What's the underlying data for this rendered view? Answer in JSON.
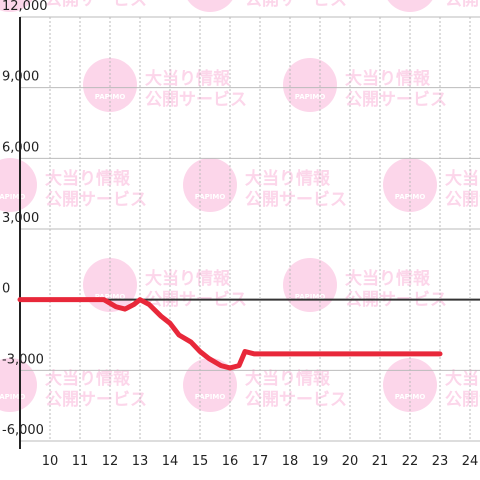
{
  "chart_data": {
    "type": "line",
    "x": [
      9,
      11.8,
      12.2,
      12.5,
      12.8,
      13.0,
      13.3,
      13.7,
      14.0,
      14.3,
      14.7,
      15.0,
      15.3,
      15.7,
      16.0,
      16.3,
      16.5,
      16.8,
      17,
      18,
      19,
      20,
      21,
      22,
      23
    ],
    "series": [
      {
        "color": "#e8283a",
        "values": [
          0,
          0,
          -300,
          -400,
          -200,
          0,
          -200,
          -700,
          -1000,
          -1500,
          -1800,
          -2200,
          -2500,
          -2800,
          -2900,
          -2800,
          -2200,
          -2300,
          -2300,
          -2300,
          -2300,
          -2300,
          -2300,
          -2300,
          -2300
        ]
      }
    ],
    "xlim": [
      9,
      24.3
    ],
    "xticks": [
      10,
      11,
      12,
      13,
      14,
      15,
      16,
      17,
      18,
      19,
      20,
      21,
      22,
      23,
      24
    ],
    "ylim": [
      -6000,
      12000
    ],
    "yticks": [
      {
        "value": -6000,
        "label": "-6,000"
      },
      {
        "value": -3000,
        "label": "-3,000"
      },
      0,
      {
        "value": 3000,
        "label": "3,000"
      },
      {
        "value": 6000,
        "label": "6,000"
      },
      {
        "value": 9000,
        "label": "9,000"
      },
      {
        "value": 12000,
        "label": "12,000"
      }
    ],
    "grid": true
  },
  "watermark": {
    "logo": "PAPIMO",
    "line1": "大当り情報",
    "line2": "公開サービス"
  }
}
